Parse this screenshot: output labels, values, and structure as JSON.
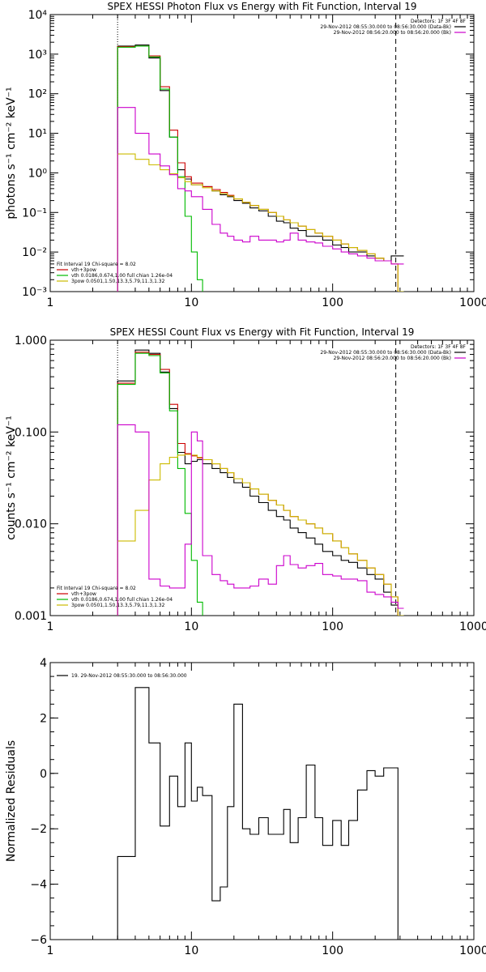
{
  "chart_data": [
    {
      "type": "line",
      "title": "SPEX HESSI Photon Flux vs Energy with Fit Function, Interval 19",
      "ylabel": "photons s⁻¹ cm⁻² keV⁻¹",
      "xlabel": "",
      "xscale": "log",
      "yscale": "log",
      "xlim": [
        1,
        1000
      ],
      "ylim": [
        0.001,
        10000
      ],
      "xticks": [
        {
          "v": 1,
          "label": "1"
        },
        {
          "v": 10,
          "label": "10"
        },
        {
          "v": 100,
          "label": "100"
        },
        {
          "v": 1000,
          "label": "1000"
        }
      ],
      "yticks": [
        {
          "v": 0.001,
          "label": "10⁻³"
        },
        {
          "v": 0.01,
          "label": "10⁻²"
        },
        {
          "v": 0.1,
          "label": "10⁻¹"
        },
        {
          "v": 1,
          "label": "10⁰"
        },
        {
          "v": 10,
          "label": "10¹"
        },
        {
          "v": 100,
          "label": "10²"
        },
        {
          "v": 1000,
          "label": "10³"
        },
        {
          "v": 10000,
          "label": "10⁴"
        }
      ],
      "vlines": [
        {
          "x": 3,
          "style": "dotted",
          "color": "#000000"
        },
        {
          "x": 280,
          "style": "dashed",
          "color": "#000000"
        }
      ],
      "legend_top_right": {
        "header": "Detectors: 1F 3F 4F 8F",
        "entries": [
          {
            "label": "29-Nov-2012 08:55:30.000 to 08:56:30.000 (Data-Bk)",
            "color": "#000000"
          },
          {
            "label": "29-Nov-2012 08:56:20.000 to 08:56:20.000 (Bk)",
            "color": "#cc00cc"
          }
        ]
      },
      "legend_bottom_left": {
        "header": "Fit Interval 19   Chi-square = 8.02",
        "entries": [
          {
            "label": "vth+3pow",
            "color": "#cc0000"
          },
          {
            "label": "vth 0.0186,0.674,1.00  full chian 1.26e-04",
            "color": "#00bb00"
          },
          {
            "label": "3pow 0.0501,1.50,13.3,5.79,11.3,1.32",
            "color": "#ccbb00"
          }
        ]
      },
      "series": [
        {
          "name": "Data-Bk",
          "color": "#000000",
          "x": [
            3,
            4,
            5,
            6,
            7,
            8,
            9,
            10,
            12,
            14,
            16,
            18,
            20,
            23,
            26,
            30,
            35,
            40,
            45,
            50,
            57,
            65,
            75,
            85,
            100,
            115,
            130,
            150,
            175,
            200,
            230,
            260,
            290
          ],
          "y": [
            1600,
            1700,
            800,
            120,
            8,
            1.2,
            0.7,
            0.5,
            0.45,
            0.35,
            0.28,
            0.25,
            0.2,
            0.17,
            0.13,
            0.11,
            0.08,
            0.06,
            0.055,
            0.04,
            0.035,
            0.025,
            0.025,
            0.02,
            0.015,
            0.013,
            0.01,
            0.01,
            0.008,
            0.007,
            0.006,
            0.008,
            0.008
          ]
        },
        {
          "name": "vth+3pow",
          "color": "#cc0000",
          "x": [
            3,
            4,
            5,
            6,
            7,
            8,
            9,
            10,
            12,
            14,
            16,
            18,
            20,
            23,
            26,
            30,
            35,
            40,
            45,
            50,
            57,
            65,
            75,
            85,
            100,
            115,
            130,
            150,
            175,
            200,
            230,
            260,
            290
          ],
          "y": [
            1550,
            1600,
            900,
            150,
            12,
            1.8,
            0.8,
            0.55,
            0.45,
            0.38,
            0.32,
            0.27,
            0.22,
            0.18,
            0.15,
            0.12,
            0.1,
            0.08,
            0.065,
            0.055,
            0.045,
            0.037,
            0.03,
            0.025,
            0.02,
            0.016,
            0.013,
            0.011,
            0.009,
            0.007,
            0.006,
            0.005,
            0.001
          ]
        },
        {
          "name": "vth",
          "color": "#00bb00",
          "x": [
            3,
            4,
            5,
            6,
            7,
            8,
            9,
            10,
            11,
            12
          ],
          "y": [
            1500,
            1600,
            850,
            130,
            8,
            0.8,
            0.08,
            0.01,
            0.002,
            0.0001
          ]
        },
        {
          "name": "3pow",
          "color": "#ccbb00",
          "x": [
            3,
            4,
            5,
            6,
            7,
            8,
            9,
            10,
            12,
            14,
            16,
            18,
            20,
            23,
            26,
            30,
            35,
            40,
            45,
            50,
            57,
            65,
            75,
            85,
            100,
            115,
            130,
            150,
            175,
            200,
            230,
            260,
            290
          ],
          "y": [
            3,
            2.2,
            1.6,
            1.2,
            0.95,
            0.75,
            0.6,
            0.5,
            0.42,
            0.35,
            0.3,
            0.26,
            0.22,
            0.18,
            0.15,
            0.12,
            0.1,
            0.08,
            0.065,
            0.055,
            0.045,
            0.037,
            0.03,
            0.025,
            0.02,
            0.016,
            0.013,
            0.011,
            0.009,
            0.007,
            0.006,
            0.005,
            0.001
          ]
        },
        {
          "name": "Bk",
          "color": "#cc00cc",
          "x": [
            3,
            4,
            5,
            6,
            7,
            8,
            9,
            10,
            12,
            14,
            16,
            18,
            20,
            23,
            26,
            30,
            35,
            40,
            45,
            50,
            57,
            65,
            75,
            85,
            100,
            115,
            130,
            150,
            175,
            200,
            230,
            260,
            290
          ],
          "y": [
            45,
            10,
            3,
            1.5,
            0.9,
            0.4,
            0.35,
            0.25,
            0.12,
            0.05,
            0.03,
            0.025,
            0.02,
            0.018,
            0.025,
            0.02,
            0.02,
            0.018,
            0.02,
            0.03,
            0.02,
            0.018,
            0.017,
            0.014,
            0.012,
            0.01,
            0.009,
            0.008,
            0.007,
            0.006,
            0.006,
            0.005,
            0.005
          ]
        }
      ]
    },
    {
      "type": "line",
      "title": "SPEX HESSI Count Flux vs Energy with Fit Function, Interval 19",
      "ylabel": "counts s⁻¹ cm⁻² keV⁻¹",
      "xlabel": "",
      "xscale": "log",
      "yscale": "log",
      "xlim": [
        1,
        1000
      ],
      "ylim": [
        0.001,
        1.0
      ],
      "xticks": [
        {
          "v": 1,
          "label": "1"
        },
        {
          "v": 10,
          "label": "10"
        },
        {
          "v": 100,
          "label": "100"
        },
        {
          "v": 1000,
          "label": "1000"
        }
      ],
      "yticks": [
        {
          "v": 0.001,
          "label": "0.001"
        },
        {
          "v": 0.01,
          "label": "0.010"
        },
        {
          "v": 0.1,
          "label": "0.100"
        },
        {
          "v": 1,
          "label": "1.000"
        }
      ],
      "vlines": [
        {
          "x": 3,
          "style": "dotted",
          "color": "#000000"
        },
        {
          "x": 280,
          "style": "dashed",
          "color": "#000000"
        }
      ],
      "legend_top_right": {
        "header": "Detectors: 1F 3F 4F 8F",
        "entries": [
          {
            "label": "29-Nov-2012 08:55:30.000 to 08:56:30.000 (Data-Bk)",
            "color": "#000000"
          },
          {
            "label": "29-Nov-2012 08:56:20.000 to 08:56:20.000 (Bk)",
            "color": "#cc00cc"
          }
        ]
      },
      "legend_bottom_left": {
        "header": "Fit Interval 19   Chi-square = 8.02",
        "entries": [
          {
            "label": "vth+3pow",
            "color": "#cc0000"
          },
          {
            "label": "vth 0.0186,0.674,1.00  full chian 1.26e-04",
            "color": "#00bb00"
          },
          {
            "label": "3pow 0.0501,1.50,13.3,5.79,11.3,1.32",
            "color": "#ccbb00"
          }
        ]
      },
      "series": [
        {
          "name": "Data-Bk",
          "color": "#000000",
          "x": [
            3,
            4,
            5,
            6,
            7,
            8,
            9,
            10,
            11,
            12,
            14,
            16,
            18,
            20,
            23,
            26,
            30,
            35,
            40,
            45,
            50,
            57,
            65,
            75,
            85,
            100,
            115,
            130,
            150,
            175,
            200,
            230,
            260,
            290
          ],
          "y": [
            0.36,
            0.78,
            0.72,
            0.45,
            0.18,
            0.06,
            0.045,
            0.048,
            0.05,
            0.045,
            0.04,
            0.036,
            0.032,
            0.028,
            0.025,
            0.02,
            0.017,
            0.014,
            0.012,
            0.011,
            0.009,
            0.008,
            0.007,
            0.006,
            0.005,
            0.0045,
            0.004,
            0.0038,
            0.0033,
            0.0028,
            0.0025,
            0.0018,
            0.0013,
            0.001
          ]
        },
        {
          "name": "vth+3pow",
          "color": "#cc0000",
          "x": [
            3,
            4,
            5,
            6,
            7,
            8,
            9,
            10,
            11,
            12,
            14,
            16,
            18,
            20,
            23,
            26,
            30,
            35,
            40,
            45,
            50,
            57,
            65,
            75,
            85,
            100,
            115,
            130,
            150,
            175,
            200,
            230,
            260,
            290
          ],
          "y": [
            0.34,
            0.74,
            0.7,
            0.48,
            0.2,
            0.075,
            0.058,
            0.055,
            0.052,
            0.05,
            0.045,
            0.04,
            0.036,
            0.031,
            0.028,
            0.024,
            0.021,
            0.018,
            0.016,
            0.014,
            0.012,
            0.011,
            0.01,
            0.009,
            0.0078,
            0.0065,
            0.0055,
            0.0047,
            0.004,
            0.0033,
            0.0028,
            0.0022,
            0.0016,
            0.001
          ]
        },
        {
          "name": "vth",
          "color": "#00bb00",
          "x": [
            3,
            4,
            5,
            6,
            7,
            8,
            9,
            10,
            11,
            12
          ],
          "y": [
            0.33,
            0.72,
            0.68,
            0.44,
            0.17,
            0.04,
            0.013,
            0.004,
            0.0014,
            0.0005
          ]
        },
        {
          "name": "3pow",
          "color": "#ccbb00",
          "x": [
            3,
            4,
            5,
            6,
            7,
            8,
            9,
            10,
            11,
            12,
            14,
            16,
            18,
            20,
            23,
            26,
            30,
            35,
            40,
            45,
            50,
            57,
            65,
            75,
            85,
            100,
            115,
            130,
            150,
            175,
            200,
            230,
            260,
            290
          ],
          "y": [
            0.0065,
            0.014,
            0.03,
            0.045,
            0.053,
            0.056,
            0.057,
            0.056,
            0.053,
            0.05,
            0.045,
            0.04,
            0.036,
            0.031,
            0.028,
            0.024,
            0.021,
            0.018,
            0.016,
            0.014,
            0.012,
            0.011,
            0.01,
            0.009,
            0.0078,
            0.0065,
            0.0055,
            0.0047,
            0.004,
            0.0033,
            0.0028,
            0.0022,
            0.0016,
            0.001
          ]
        },
        {
          "name": "Bk",
          "color": "#cc00cc",
          "x": [
            3,
            4,
            5,
            6,
            7,
            8,
            9,
            10,
            11,
            12,
            14,
            16,
            18,
            20,
            23,
            26,
            30,
            35,
            40,
            45,
            50,
            57,
            65,
            75,
            85,
            100,
            115,
            130,
            150,
            175,
            200,
            230,
            260,
            290
          ],
          "y": [
            0.12,
            0.1,
            0.0025,
            0.0021,
            0.002,
            0.002,
            0.006,
            0.1,
            0.08,
            0.0045,
            0.0028,
            0.0024,
            0.0022,
            0.002,
            0.002,
            0.0021,
            0.0025,
            0.0022,
            0.0035,
            0.0045,
            0.0036,
            0.0033,
            0.0035,
            0.0037,
            0.0028,
            0.0027,
            0.0025,
            0.0025,
            0.0024,
            0.0018,
            0.0017,
            0.0016,
            0.0014,
            0.0012
          ]
        }
      ]
    },
    {
      "type": "line",
      "title": "",
      "ylabel": "Normalized Residuals",
      "xlabel": "",
      "xscale": "log",
      "yscale": "linear",
      "xlim": [
        1,
        1000
      ],
      "ylim": [
        -6,
        4
      ],
      "xticks": [
        {
          "v": 1,
          "label": "1"
        },
        {
          "v": 10,
          "label": "10"
        },
        {
          "v": 100,
          "label": "100"
        },
        {
          "v": 1000,
          "label": "1000"
        }
      ],
      "yticks": [
        {
          "v": -6,
          "label": "−6"
        },
        {
          "v": -4,
          "label": "−4"
        },
        {
          "v": -2,
          "label": "−2"
        },
        {
          "v": 0,
          "label": "0"
        },
        {
          "v": 2,
          "label": "2"
        },
        {
          "v": 4,
          "label": "4"
        }
      ],
      "legend_top_left": {
        "entries": [
          {
            "label": "19. 29-Nov-2012 08:55:30.000 to 08:56:30.000",
            "color": "#000000"
          }
        ]
      },
      "series": [
        {
          "name": "Residuals",
          "color": "#000000",
          "x": [
            3,
            4,
            5,
            6,
            7,
            8,
            9,
            10,
            11,
            12,
            14,
            16,
            18,
            20,
            23,
            26,
            30,
            35,
            40,
            45,
            50,
            57,
            65,
            75,
            85,
            100,
            115,
            130,
            150,
            175,
            200,
            230,
            260,
            290
          ],
          "y": [
            -3,
            3.1,
            1.1,
            -1.9,
            -0.1,
            -1.2,
            1.1,
            -1,
            -0.5,
            -0.8,
            -4.6,
            -4.1,
            -1.2,
            2.5,
            -2.0,
            -2.2,
            -1.6,
            -2.2,
            -2.2,
            -1.3,
            -2.5,
            -1.6,
            0.3,
            -1.6,
            -2.6,
            -1.7,
            -2.6,
            -1.7,
            -0.6,
            0.1,
            -0.1,
            0.2,
            0.2,
            -6
          ]
        }
      ]
    }
  ]
}
